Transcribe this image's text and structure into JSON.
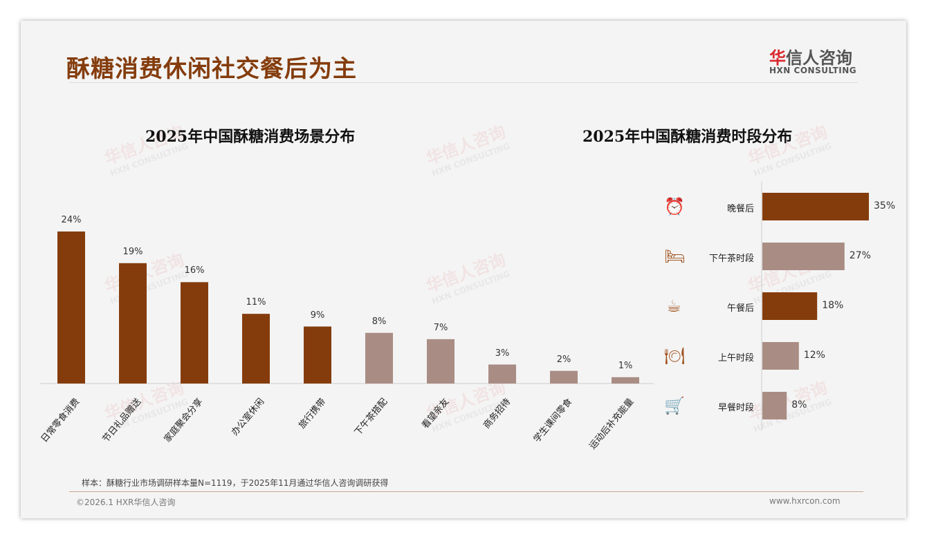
{
  "header": {
    "title": "酥糖消费休闲社交餐后为主",
    "logo_cn_red": "华",
    "logo_cn": "信人咨询",
    "logo_en": "HXN CONSULTING"
  },
  "watermark": {
    "cn": "华信人咨询",
    "en": "HXN CONSULTING"
  },
  "colors": {
    "dark": "#843c0c",
    "light": "#a98d84"
  },
  "chart_data": [
    {
      "type": "bar",
      "title": "2025年中国酥糖消费场景分布",
      "categories": [
        "日常零食消费",
        "节日礼品赠送",
        "家庭聚会分享",
        "办公室休闲",
        "旅行携带",
        "下午茶搭配",
        "看望亲友",
        "商务招待",
        "学生课间零食",
        "运动后补充能量"
      ],
      "values": [
        24,
        19,
        16,
        11,
        9,
        8,
        7,
        3,
        2,
        1
      ],
      "labels": [
        "24%",
        "19%",
        "16%",
        "11%",
        "9%",
        "8%",
        "7%",
        "3%",
        "2%",
        "1%"
      ],
      "highlight": [
        true,
        true,
        true,
        true,
        true,
        false,
        false,
        false,
        false,
        false
      ],
      "unit": "%",
      "ylim": [
        0,
        24
      ]
    },
    {
      "type": "bar",
      "orientation": "horizontal",
      "title": "2025年中国酥糖消费时段分布",
      "categories": [
        "晚餐后",
        "下午茶时段",
        "午餐后",
        "上午时段",
        "早餐时段"
      ],
      "icons": [
        "alarm-clock-icon",
        "bed-icon",
        "coffee-mug-icon",
        "plate-cutlery-icon",
        "shopping-cart-icon"
      ],
      "values": [
        35,
        27,
        18,
        12,
        8
      ],
      "labels": [
        "35%",
        "27%",
        "18%",
        "12%",
        "8%"
      ],
      "highlight": [
        true,
        false,
        true,
        false,
        false
      ],
      "unit": "%",
      "xlim": [
        0,
        35
      ]
    }
  ],
  "footer": {
    "note": "样本：酥糖行业市场调研样本量N=1119，于2025年11月通过华信人咨询调研获得",
    "copyright": "©2026.1 HXR华信人咨询",
    "url": "www.hxrcon.com"
  }
}
